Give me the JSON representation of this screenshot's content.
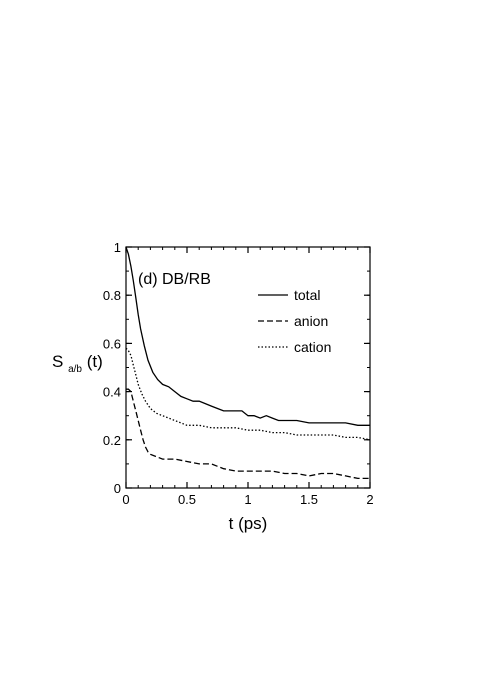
{
  "chart_data": {
    "type": "line",
    "panel_label": "(d) DB/RB",
    "xlabel": "t (ps)",
    "ylabel_main": "S",
    "ylabel_sub": "a/b",
    "ylabel_tail": "(t)",
    "xlim": [
      0,
      2
    ],
    "ylim": [
      0,
      1
    ],
    "x_ticks": [
      {
        "value": 0,
        "label": "0"
      },
      {
        "value": 0.5,
        "label": "0.5"
      },
      {
        "value": 1,
        "label": "1"
      },
      {
        "value": 1.5,
        "label": "1.5"
      },
      {
        "value": 2,
        "label": "2"
      }
    ],
    "y_ticks": [
      {
        "value": 0,
        "label": "0"
      },
      {
        "value": 0.2,
        "label": "0.2"
      },
      {
        "value": 0.4,
        "label": "0.4"
      },
      {
        "value": 0.6,
        "label": "0.6"
      },
      {
        "value": 0.8,
        "label": "0.8"
      },
      {
        "value": 1,
        "label": "1"
      }
    ],
    "x_minor_step": 0.1,
    "y_minor_step": 0.1,
    "grid": false,
    "legend_position": "top-right",
    "series": [
      {
        "name": "total",
        "style": "solid",
        "points": [
          [
            0,
            1.0
          ],
          [
            0.02,
            0.97
          ],
          [
            0.04,
            0.92
          ],
          [
            0.06,
            0.86
          ],
          [
            0.08,
            0.79
          ],
          [
            0.1,
            0.72
          ],
          [
            0.12,
            0.66
          ],
          [
            0.15,
            0.59
          ],
          [
            0.18,
            0.53
          ],
          [
            0.22,
            0.48
          ],
          [
            0.26,
            0.45
          ],
          [
            0.3,
            0.43
          ],
          [
            0.35,
            0.42
          ],
          [
            0.4,
            0.4
          ],
          [
            0.45,
            0.38
          ],
          [
            0.5,
            0.37
          ],
          [
            0.55,
            0.36
          ],
          [
            0.6,
            0.36
          ],
          [
            0.65,
            0.35
          ],
          [
            0.7,
            0.34
          ],
          [
            0.75,
            0.33
          ],
          [
            0.8,
            0.32
          ],
          [
            0.85,
            0.32
          ],
          [
            0.9,
            0.32
          ],
          [
            0.95,
            0.32
          ],
          [
            1.0,
            0.3
          ],
          [
            1.05,
            0.3
          ],
          [
            1.1,
            0.29
          ],
          [
            1.15,
            0.3
          ],
          [
            1.2,
            0.29
          ],
          [
            1.25,
            0.28
          ],
          [
            1.3,
            0.28
          ],
          [
            1.4,
            0.28
          ],
          [
            1.5,
            0.27
          ],
          [
            1.6,
            0.27
          ],
          [
            1.7,
            0.27
          ],
          [
            1.8,
            0.27
          ],
          [
            1.9,
            0.26
          ],
          [
            2.0,
            0.26
          ]
        ]
      },
      {
        "name": "anion",
        "style": "dashed",
        "points": [
          [
            0,
            0.41
          ],
          [
            0.02,
            0.41
          ],
          [
            0.04,
            0.4
          ],
          [
            0.06,
            0.36
          ],
          [
            0.08,
            0.32
          ],
          [
            0.1,
            0.28
          ],
          [
            0.12,
            0.24
          ],
          [
            0.14,
            0.2
          ],
          [
            0.16,
            0.17
          ],
          [
            0.18,
            0.15
          ],
          [
            0.2,
            0.14
          ],
          [
            0.25,
            0.13
          ],
          [
            0.3,
            0.12
          ],
          [
            0.4,
            0.12
          ],
          [
            0.5,
            0.11
          ],
          [
            0.6,
            0.1
          ],
          [
            0.7,
            0.1
          ],
          [
            0.8,
            0.08
          ],
          [
            0.9,
            0.07
          ],
          [
            1.0,
            0.07
          ],
          [
            1.1,
            0.07
          ],
          [
            1.2,
            0.07
          ],
          [
            1.3,
            0.06
          ],
          [
            1.4,
            0.06
          ],
          [
            1.5,
            0.05
          ],
          [
            1.6,
            0.06
          ],
          [
            1.7,
            0.06
          ],
          [
            1.8,
            0.05
          ],
          [
            1.9,
            0.04
          ],
          [
            2.0,
            0.04
          ]
        ]
      },
      {
        "name": "cation",
        "style": "dotted",
        "points": [
          [
            0,
            0.58
          ],
          [
            0.02,
            0.57
          ],
          [
            0.04,
            0.55
          ],
          [
            0.06,
            0.51
          ],
          [
            0.08,
            0.47
          ],
          [
            0.1,
            0.43
          ],
          [
            0.13,
            0.39
          ],
          [
            0.16,
            0.36
          ],
          [
            0.2,
            0.33
          ],
          [
            0.25,
            0.31
          ],
          [
            0.3,
            0.3
          ],
          [
            0.35,
            0.29
          ],
          [
            0.4,
            0.28
          ],
          [
            0.5,
            0.26
          ],
          [
            0.6,
            0.26
          ],
          [
            0.7,
            0.25
          ],
          [
            0.8,
            0.25
          ],
          [
            0.9,
            0.25
          ],
          [
            1.0,
            0.24
          ],
          [
            1.1,
            0.24
          ],
          [
            1.2,
            0.23
          ],
          [
            1.3,
            0.23
          ],
          [
            1.4,
            0.22
          ],
          [
            1.5,
            0.22
          ],
          [
            1.6,
            0.22
          ],
          [
            1.7,
            0.22
          ],
          [
            1.8,
            0.21
          ],
          [
            1.9,
            0.21
          ],
          [
            2.0,
            0.2
          ]
        ]
      }
    ]
  }
}
